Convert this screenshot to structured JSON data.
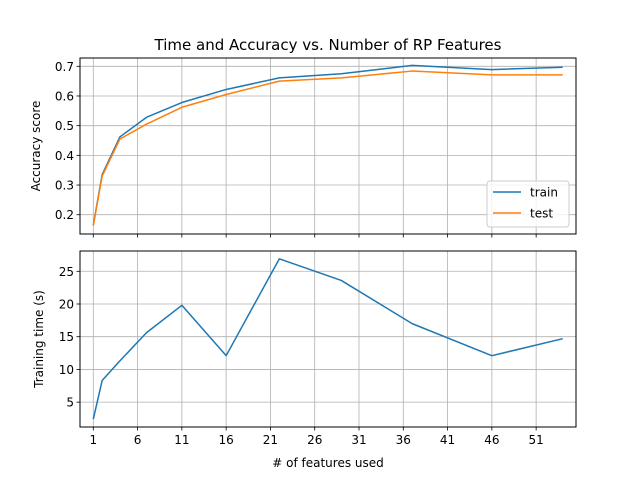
{
  "chart_data": [
    {
      "type": "line",
      "title": "Time and Accuracy vs. Number of RP Features",
      "xlabel": "",
      "ylabel": "Accuracy score",
      "xlim": [
        -0.5,
        55.5
      ],
      "ylim": [
        0.135,
        0.728
      ],
      "xticks": [
        1,
        6,
        11,
        16,
        21,
        26,
        31,
        36,
        41,
        46,
        51
      ],
      "show_xticklabels": false,
      "yticks": [
        0.2,
        0.3,
        0.4,
        0.5,
        0.6,
        0.7
      ],
      "ytick_labels": [
        "0.2",
        "0.3",
        "0.4",
        "0.5",
        "0.6",
        "0.7"
      ],
      "grid": true,
      "legend_position": "lower-right",
      "series": [
        {
          "name": "train",
          "color": "#1f77b4",
          "x": [
            1,
            2,
            4,
            7,
            11,
            16,
            22,
            29,
            37,
            46,
            54
          ],
          "values": [
            0.165,
            0.335,
            0.462,
            0.528,
            0.578,
            0.622,
            0.661,
            0.675,
            0.703,
            0.689,
            0.697
          ]
        },
        {
          "name": "test",
          "color": "#ff7f0e",
          "x": [
            1,
            2,
            4,
            7,
            11,
            16,
            22,
            29,
            37,
            46,
            54
          ],
          "values": [
            0.163,
            0.33,
            0.455,
            0.505,
            0.562,
            0.605,
            0.65,
            0.661,
            0.684,
            0.671,
            0.671
          ]
        }
      ]
    },
    {
      "type": "line",
      "title": "",
      "xlabel": "# of features used",
      "ylabel": "Training time (s)",
      "xlim": [
        -0.5,
        55.5
      ],
      "ylim": [
        1.2,
        28.1
      ],
      "xticks": [
        1,
        6,
        11,
        16,
        21,
        26,
        31,
        36,
        41,
        46,
        51
      ],
      "xtick_labels": [
        "1",
        "6",
        "11",
        "16",
        "21",
        "26",
        "31",
        "36",
        "41",
        "46",
        "51"
      ],
      "yticks": [
        5,
        10,
        15,
        20,
        25
      ],
      "ytick_labels": [
        "5",
        "10",
        "15",
        "20",
        "25"
      ],
      "grid": true,
      "series": [
        {
          "color": "#1f77b4",
          "x": [
            1,
            2,
            4,
            7,
            11,
            16,
            22,
            29,
            37,
            46,
            54
          ],
          "values": [
            2.4,
            8.3,
            11.3,
            15.6,
            19.8,
            12.1,
            26.9,
            23.6,
            17.0,
            12.1,
            14.7
          ]
        }
      ]
    }
  ]
}
